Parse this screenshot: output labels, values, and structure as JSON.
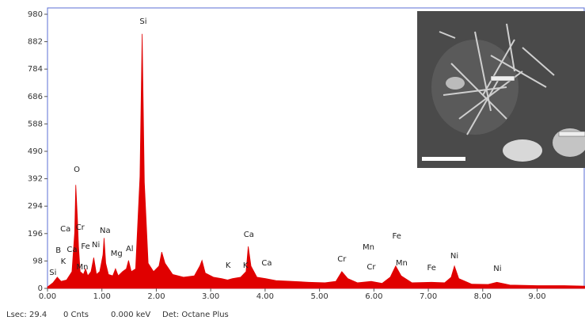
{
  "chart_data": {
    "type": "area",
    "color": "#e00000",
    "x": [
      0.0,
      0.1,
      0.18,
      0.25,
      0.35,
      0.45,
      0.5,
      0.52,
      0.55,
      0.57,
      0.6,
      0.66,
      0.7,
      0.74,
      0.8,
      0.85,
      0.9,
      0.96,
      1.02,
      1.04,
      1.07,
      1.12,
      1.2,
      1.25,
      1.3,
      1.38,
      1.45,
      1.49,
      1.54,
      1.62,
      1.7,
      1.74,
      1.78,
      1.85,
      1.95,
      2.05,
      2.1,
      2.16,
      2.3,
      2.5,
      2.7,
      2.8,
      2.84,
      2.9,
      3.05,
      3.2,
      3.31,
      3.4,
      3.55,
      3.65,
      3.69,
      3.74,
      3.85,
      4.01,
      4.2,
      4.5,
      4.8,
      5.1,
      5.3,
      5.41,
      5.52,
      5.7,
      5.95,
      6.15,
      6.3,
      6.4,
      6.5,
      6.7,
      7.06,
      7.3,
      7.42,
      7.48,
      7.56,
      7.8,
      8.1,
      8.26,
      8.5,
      9.0,
      9.5,
      9.88
    ],
    "values": [
      5,
      20,
      40,
      25,
      30,
      60,
      200,
      370,
      250,
      150,
      60,
      50,
      70,
      45,
      60,
      110,
      50,
      60,
      120,
      180,
      90,
      50,
      45,
      70,
      45,
      60,
      70,
      100,
      60,
      70,
      400,
      910,
      380,
      90,
      60,
      80,
      130,
      90,
      50,
      40,
      45,
      80,
      100,
      55,
      40,
      35,
      30,
      35,
      40,
      60,
      150,
      80,
      40,
      35,
      28,
      25,
      22,
      20,
      25,
      60,
      35,
      20,
      25,
      18,
      40,
      80,
      45,
      20,
      22,
      20,
      40,
      80,
      35,
      15,
      14,
      22,
      12,
      10,
      10,
      8
    ],
    "xlim": [
      0,
      9.88
    ],
    "ylim": [
      0,
      980
    ],
    "xticks": [
      {
        "value": 0,
        "label": "0.00"
      },
      {
        "value": 1,
        "label": "1.00"
      },
      {
        "value": 2,
        "label": "2.00"
      },
      {
        "value": 3,
        "label": "3.00"
      },
      {
        "value": 4,
        "label": "4.00"
      },
      {
        "value": 5,
        "label": "5.00"
      },
      {
        "value": 6,
        "label": "6.00"
      },
      {
        "value": 7,
        "label": "7.00"
      },
      {
        "value": 8,
        "label": "8.00"
      },
      {
        "value": 9,
        "label": "9.00"
      }
    ],
    "yticks": [
      0,
      98,
      196,
      294,
      392,
      490,
      588,
      686,
      784,
      882,
      980
    ],
    "annotations": [
      {
        "text": "Si",
        "x": 1.76,
        "y": 955
      },
      {
        "text": "O",
        "x": 0.54,
        "y": 425
      },
      {
        "text": "Ca",
        "x": 0.33,
        "y": 212
      },
      {
        "text": "Cr",
        "x": 0.6,
        "y": 218
      },
      {
        "text": "B",
        "x": 0.2,
        "y": 136
      },
      {
        "text": "K",
        "x": 0.29,
        "y": 96
      },
      {
        "text": "Ca",
        "x": 0.45,
        "y": 139
      },
      {
        "text": "Fe",
        "x": 0.7,
        "y": 150
      },
      {
        "text": "Ni",
        "x": 0.89,
        "y": 156
      },
      {
        "text": "Mn",
        "x": 0.64,
        "y": 76
      },
      {
        "text": "Na",
        "x": 1.06,
        "y": 207
      },
      {
        "text": "Mg",
        "x": 1.27,
        "y": 125
      },
      {
        "text": "Al",
        "x": 1.51,
        "y": 142
      },
      {
        "text": "Si",
        "x": 0.1,
        "y": 57
      },
      {
        "text": "Ca",
        "x": 3.7,
        "y": 193
      },
      {
        "text": "K",
        "x": 3.32,
        "y": 82
      },
      {
        "text": "K",
        "x": 3.64,
        "y": 82
      },
      {
        "text": "Ca",
        "x": 4.03,
        "y": 91
      },
      {
        "text": "Cr",
        "x": 5.41,
        "y": 105
      },
      {
        "text": "Mn",
        "x": 5.9,
        "y": 147
      },
      {
        "text": "Cr",
        "x": 5.95,
        "y": 76
      },
      {
        "text": "Fe",
        "x": 6.42,
        "y": 187
      },
      {
        "text": "Mn",
        "x": 6.51,
        "y": 91
      },
      {
        "text": "Fe",
        "x": 7.06,
        "y": 74
      },
      {
        "text": "Ni",
        "x": 7.48,
        "y": 116
      },
      {
        "text": "Ni",
        "x": 8.27,
        "y": 71
      }
    ],
    "status": [
      "Lsec: 29.4",
      "0 Cnts",
      "0.000 keV",
      "Det: Octane Plus"
    ]
  }
}
